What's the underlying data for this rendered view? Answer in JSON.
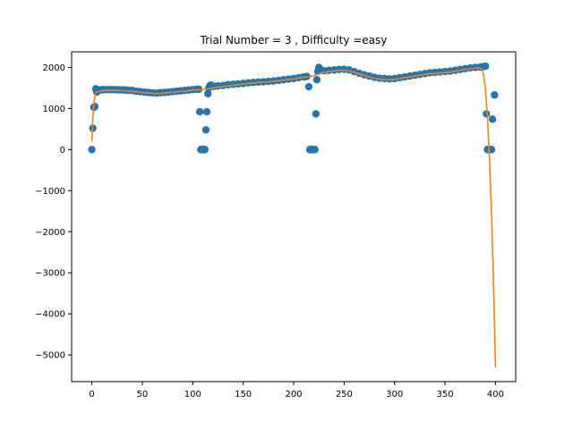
{
  "chart_data": {
    "type": "scatter",
    "title": "Trial Number = 3  , Difficulty =easy",
    "xlabel": "",
    "ylabel": "",
    "xlim": [
      -20,
      420
    ],
    "ylim": [
      -5650,
      2380
    ],
    "x_ticks": [
      0,
      50,
      100,
      150,
      200,
      250,
      300,
      350,
      400
    ],
    "y_ticks": [
      2000,
      1000,
      0,
      -1000,
      -2000,
      -3000,
      -4000,
      -5000
    ],
    "x_tick_labels": [
      "0",
      "50",
      "100",
      "150",
      "200",
      "250",
      "300",
      "350",
      "400"
    ],
    "y_tick_labels": [
      "2000",
      "1000",
      "0",
      "−1000",
      "−2000",
      "−3000",
      "−4000",
      "−5000"
    ],
    "grid": false,
    "colors": {
      "scatter": "#1f77b4",
      "line": "#ff7f0e"
    },
    "series": [
      {
        "kind": "scatter",
        "points": [
          [
            0,
            0
          ],
          [
            1,
            520
          ],
          [
            2,
            1030
          ],
          [
            3,
            1050
          ],
          [
            4,
            1480
          ],
          [
            5,
            1400
          ],
          [
            6,
            1440
          ],
          [
            8,
            1450
          ],
          [
            10,
            1460
          ],
          [
            12,
            1460
          ],
          [
            15,
            1460
          ],
          [
            18,
            1460
          ],
          [
            20,
            1460
          ],
          [
            23,
            1460
          ],
          [
            26,
            1455
          ],
          [
            30,
            1455
          ],
          [
            33,
            1450
          ],
          [
            36,
            1445
          ],
          [
            40,
            1440
          ],
          [
            44,
            1420
          ],
          [
            48,
            1410
          ],
          [
            52,
            1400
          ],
          [
            56,
            1390
          ],
          [
            60,
            1380
          ],
          [
            64,
            1375
          ],
          [
            68,
            1385
          ],
          [
            72,
            1390
          ],
          [
            76,
            1400
          ],
          [
            80,
            1410
          ],
          [
            84,
            1420
          ],
          [
            88,
            1430
          ],
          [
            92,
            1440
          ],
          [
            96,
            1450
          ],
          [
            100,
            1460
          ],
          [
            104,
            1470
          ],
          [
            106,
            1470
          ],
          [
            107,
            920
          ],
          [
            108,
            0
          ],
          [
            109,
            0
          ],
          [
            110,
            0
          ],
          [
            111,
            0
          ],
          [
            112,
            0
          ],
          [
            113,
            480
          ],
          [
            114,
            920
          ],
          [
            115,
            1360
          ],
          [
            116,
            1500
          ],
          [
            117,
            1560
          ],
          [
            118,
            1570
          ],
          [
            121,
            1540
          ],
          [
            125,
            1550
          ],
          [
            130,
            1560
          ],
          [
            135,
            1580
          ],
          [
            140,
            1590
          ],
          [
            145,
            1600
          ],
          [
            150,
            1610
          ],
          [
            155,
            1625
          ],
          [
            160,
            1635
          ],
          [
            165,
            1645
          ],
          [
            170,
            1650
          ],
          [
            175,
            1660
          ],
          [
            180,
            1670
          ],
          [
            185,
            1685
          ],
          [
            190,
            1700
          ],
          [
            195,
            1715
          ],
          [
            200,
            1730
          ],
          [
            205,
            1750
          ],
          [
            210,
            1770
          ],
          [
            213,
            1780
          ],
          [
            215,
            1530
          ],
          [
            216,
            0
          ],
          [
            217,
            0
          ],
          [
            218,
            0
          ],
          [
            219,
            0
          ],
          [
            220,
            0
          ],
          [
            221,
            0
          ],
          [
            222,
            870
          ],
          [
            223,
            1700
          ],
          [
            224,
            1900
          ],
          [
            225,
            2000
          ],
          [
            226,
            1950
          ],
          [
            230,
            1920
          ],
          [
            235,
            1930
          ],
          [
            240,
            1940
          ],
          [
            245,
            1950
          ],
          [
            250,
            1955
          ],
          [
            255,
            1940
          ],
          [
            260,
            1900
          ],
          [
            265,
            1860
          ],
          [
            270,
            1820
          ],
          [
            275,
            1790
          ],
          [
            280,
            1760
          ],
          [
            285,
            1740
          ],
          [
            290,
            1730
          ],
          [
            295,
            1720
          ],
          [
            300,
            1730
          ],
          [
            305,
            1750
          ],
          [
            310,
            1770
          ],
          [
            315,
            1790
          ],
          [
            320,
            1810
          ],
          [
            325,
            1830
          ],
          [
            330,
            1850
          ],
          [
            335,
            1870
          ],
          [
            340,
            1880
          ],
          [
            345,
            1890
          ],
          [
            350,
            1900
          ],
          [
            355,
            1910
          ],
          [
            360,
            1930
          ],
          [
            365,
            1950
          ],
          [
            370,
            1970
          ],
          [
            375,
            1990
          ],
          [
            380,
            2000
          ],
          [
            385,
            2010
          ],
          [
            388,
            2020
          ],
          [
            390,
            2030
          ],
          [
            391,
            870
          ],
          [
            392,
            0
          ],
          [
            393,
            0
          ],
          [
            395,
            0
          ],
          [
            396,
            0
          ],
          [
            397,
            740
          ],
          [
            399,
            1330
          ]
        ]
      },
      {
        "kind": "line",
        "points": [
          [
            0,
            200
          ],
          [
            1,
            750
          ],
          [
            2,
            1100
          ],
          [
            3,
            1300
          ],
          [
            4,
            1380
          ],
          [
            5,
            1400
          ],
          [
            8,
            1420
          ],
          [
            10,
            1430
          ],
          [
            15,
            1440
          ],
          [
            20,
            1440
          ],
          [
            25,
            1440
          ],
          [
            30,
            1435
          ],
          [
            35,
            1425
          ],
          [
            40,
            1415
          ],
          [
            45,
            1405
          ],
          [
            50,
            1390
          ],
          [
            55,
            1380
          ],
          [
            60,
            1370
          ],
          [
            65,
            1365
          ],
          [
            70,
            1370
          ],
          [
            75,
            1380
          ],
          [
            80,
            1395
          ],
          [
            85,
            1410
          ],
          [
            90,
            1420
          ],
          [
            95,
            1430
          ],
          [
            100,
            1445
          ],
          [
            105,
            1455
          ],
          [
            110,
            1465
          ],
          [
            115,
            1480
          ],
          [
            120,
            1500
          ],
          [
            125,
            1520
          ],
          [
            130,
            1535
          ],
          [
            135,
            1550
          ],
          [
            140,
            1565
          ],
          [
            145,
            1580
          ],
          [
            150,
            1595
          ],
          [
            155,
            1610
          ],
          [
            160,
            1620
          ],
          [
            165,
            1630
          ],
          [
            170,
            1640
          ],
          [
            175,
            1650
          ],
          [
            180,
            1660
          ],
          [
            185,
            1675
          ],
          [
            190,
            1690
          ],
          [
            195,
            1705
          ],
          [
            200,
            1720
          ],
          [
            205,
            1740
          ],
          [
            210,
            1760
          ],
          [
            215,
            1775
          ],
          [
            220,
            1800
          ],
          [
            225,
            1840
          ],
          [
            230,
            1880
          ],
          [
            235,
            1900
          ],
          [
            240,
            1915
          ],
          [
            245,
            1925
          ],
          [
            250,
            1930
          ],
          [
            255,
            1915
          ],
          [
            260,
            1880
          ],
          [
            265,
            1840
          ],
          [
            270,
            1800
          ],
          [
            275,
            1765
          ],
          [
            280,
            1735
          ],
          [
            285,
            1715
          ],
          [
            290,
            1700
          ],
          [
            295,
            1700
          ],
          [
            300,
            1710
          ],
          [
            305,
            1730
          ],
          [
            310,
            1750
          ],
          [
            315,
            1770
          ],
          [
            320,
            1790
          ],
          [
            325,
            1810
          ],
          [
            330,
            1830
          ],
          [
            335,
            1845
          ],
          [
            340,
            1855
          ],
          [
            345,
            1865
          ],
          [
            350,
            1875
          ],
          [
            355,
            1890
          ],
          [
            360,
            1910
          ],
          [
            365,
            1930
          ],
          [
            370,
            1950
          ],
          [
            375,
            1965
          ],
          [
            380,
            1980
          ],
          [
            384,
            1990
          ],
          [
            386,
            1960
          ],
          [
            388,
            1850
          ],
          [
            390,
            1500
          ],
          [
            392,
            800
          ],
          [
            394,
            -200
          ],
          [
            396,
            -1500
          ],
          [
            398,
            -3200
          ],
          [
            400,
            -5300
          ]
        ]
      }
    ]
  }
}
